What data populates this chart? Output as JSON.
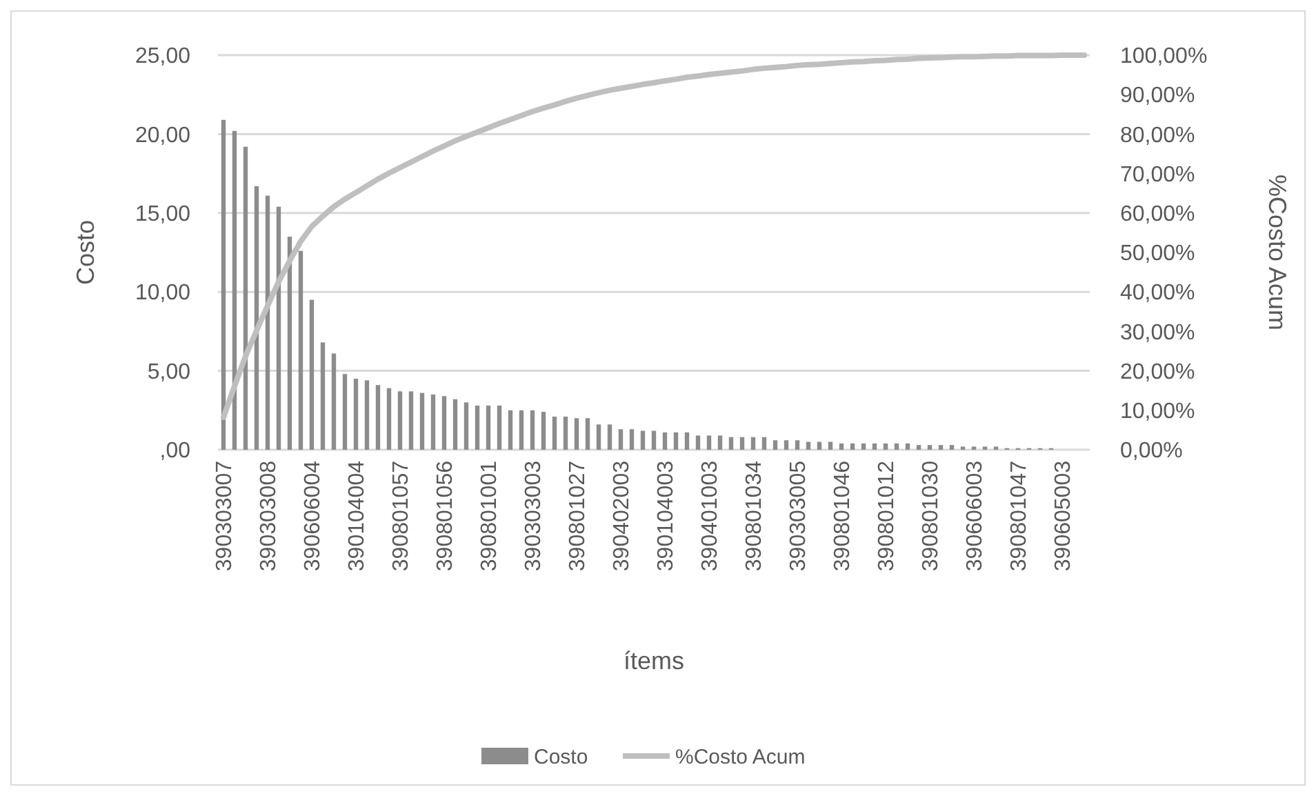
{
  "chart_data": {
    "type": "bar",
    "xlabel": "ítems",
    "ylabel": "Costo",
    "y2label": "%Costo Acum",
    "categories": [
      "390303007",
      null,
      null,
      null,
      "390303008",
      null,
      null,
      null,
      "390606004",
      null,
      null,
      null,
      "390104004",
      null,
      null,
      null,
      "390801057",
      null,
      null,
      null,
      "390801056",
      null,
      null,
      null,
      "390801001",
      null,
      null,
      null,
      "390303003",
      null,
      null,
      null,
      "390801027",
      null,
      null,
      null,
      "390402003",
      null,
      null,
      null,
      "390104003",
      null,
      null,
      null,
      "390401003",
      null,
      null,
      null,
      "390801034",
      null,
      null,
      null,
      "390303005",
      null,
      null,
      null,
      "390801046",
      null,
      null,
      null,
      "390801012",
      null,
      null,
      null,
      "390801030",
      null,
      null,
      null,
      "390606003",
      null,
      null,
      null,
      "390801047",
      null,
      null,
      null,
      "390605003",
      null,
      null
    ],
    "series": [
      {
        "name": "Costo",
        "color": "#8c8c8c",
        "values": [
          20.9,
          20.2,
          19.2,
          16.7,
          16.1,
          15.4,
          13.5,
          12.6,
          9.5,
          6.8,
          6.1,
          4.8,
          4.5,
          4.4,
          4.1,
          3.9,
          3.7,
          3.7,
          3.6,
          3.5,
          3.4,
          3.2,
          3.0,
          2.8,
          2.8,
          2.8,
          2.5,
          2.5,
          2.5,
          2.4,
          2.1,
          2.1,
          2.0,
          2.0,
          1.6,
          1.6,
          1.3,
          1.3,
          1.2,
          1.2,
          1.1,
          1.1,
          1.1,
          0.9,
          0.9,
          0.9,
          0.8,
          0.8,
          0.8,
          0.8,
          0.6,
          0.6,
          0.6,
          0.5,
          0.5,
          0.5,
          0.4,
          0.4,
          0.4,
          0.4,
          0.4,
          0.4,
          0.4,
          0.3,
          0.3,
          0.3,
          0.3,
          0.2,
          0.2,
          0.2,
          0.2,
          0.1,
          0.1,
          0.1,
          0.1,
          0.1,
          0.0,
          0.0,
          null
        ]
      },
      {
        "name": "%Costo Acum",
        "type": "line",
        "axis": "y2",
        "color": "#bfbfbf",
        "values": [
          8.2,
          16.1,
          23.7,
          30.2,
          36.5,
          42.6,
          47.9,
          52.8,
          56.6,
          59.2,
          61.6,
          63.5,
          65.2,
          66.9,
          68.6,
          70.1,
          71.5,
          72.9,
          74.3,
          75.7,
          77.0,
          78.3,
          79.4,
          80.5,
          81.6,
          82.7,
          83.7,
          84.7,
          85.7,
          86.6,
          87.4,
          88.3,
          89.1,
          89.8,
          90.5,
          91.1,
          91.6,
          92.1,
          92.6,
          93.0,
          93.5,
          93.9,
          94.4,
          94.7,
          95.1,
          95.4,
          95.7,
          96.0,
          96.4,
          96.7,
          96.9,
          97.1,
          97.4,
          97.6,
          97.7,
          97.9,
          98.1,
          98.3,
          98.4,
          98.6,
          98.7,
          98.9,
          99.0,
          99.2,
          99.3,
          99.4,
          99.5,
          99.6,
          99.6,
          99.7,
          99.8,
          99.8,
          99.9,
          99.9,
          99.9,
          99.9,
          100.0,
          100.0,
          100.0
        ]
      }
    ],
    "ylim": [
      0,
      25
    ],
    "yticks": [
      {
        "value": 0,
        "label": ",00"
      },
      {
        "value": 5,
        "label": "5,00"
      },
      {
        "value": 10,
        "label": "10,00"
      },
      {
        "value": 15,
        "label": "15,00"
      },
      {
        "value": 20,
        "label": "20,00"
      },
      {
        "value": 25,
        "label": "25,00"
      }
    ],
    "y2lim": [
      0,
      100
    ],
    "y2ticks": [
      {
        "value": 0,
        "label": "0,00%"
      },
      {
        "value": 10,
        "label": "10,00%"
      },
      {
        "value": 20,
        "label": "20,00%"
      },
      {
        "value": 30,
        "label": "30,00%"
      },
      {
        "value": 40,
        "label": "40,00%"
      },
      {
        "value": 50,
        "label": "50,00%"
      },
      {
        "value": 60,
        "label": "60,00%"
      },
      {
        "value": 70,
        "label": "70,00%"
      },
      {
        "value": 80,
        "label": "80,00%"
      },
      {
        "value": 90,
        "label": "90,00%"
      },
      {
        "value": 100,
        "label": "100,00%"
      }
    ],
    "grid": "y",
    "legend": "bottom"
  }
}
